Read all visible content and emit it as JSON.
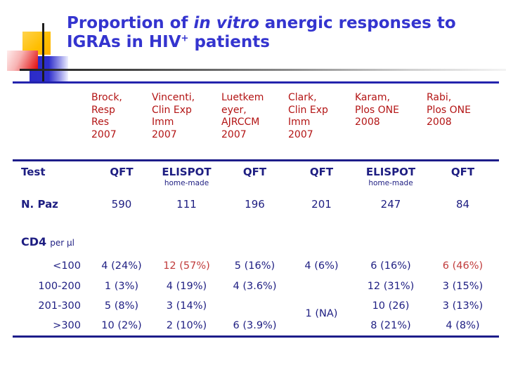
{
  "title": {
    "l1_a": "Proportion of ",
    "l1_italic": "in vitro",
    "l1_b": " anergic responses to",
    "l2_a": "IGRAs in HIV",
    "l2_sup": "+",
    "l2_b": " patients"
  },
  "colors": {
    "title_blue": "#3434cf",
    "header_red": "#b31414",
    "body_navy": "#1e1e82",
    "highlight_red": "#c13c3c",
    "deco_yellow": "#ffbe00",
    "deco_blue": "#2b2bc8",
    "deco_red": "#e31212"
  },
  "table": {
    "columns": [
      {
        "header": "Brock,\nResp\nRes\n2007"
      },
      {
        "header": "Vincenti,\nClin Exp\nImm\n2007"
      },
      {
        "header": "Luetkem\neyer,\nAJRCCM\n2007"
      },
      {
        "header": "Clark,\nClin Exp\nImm\n2007"
      },
      {
        "header": "Karam,\nPlos ONE\n2008"
      },
      {
        "header": "Rabi,\nPlos ONE\n2008"
      }
    ],
    "test_row": {
      "label": "Test",
      "values": [
        {
          "main": "QFT"
        },
        {
          "main": "ELISPOT",
          "sub": "home-made"
        },
        {
          "main": "QFT"
        },
        {
          "main": "QFT"
        },
        {
          "main": "ELISPOT",
          "sub": "home-made"
        },
        {
          "main": "QFT"
        }
      ]
    },
    "n_row": {
      "label": "N. Paz",
      "values": [
        "590",
        "111",
        "196",
        "201",
        "247",
        "84"
      ]
    },
    "cd4_heading": {
      "label": "CD4",
      "unit": "per μl"
    },
    "cd4_rows": [
      {
        "label": "<100",
        "values": [
          "4 (24%)",
          "12 (57%)",
          "5 (16%)",
          "4 (6%)",
          "6 (16%)",
          "6 (46%)"
        ]
      },
      {
        "label": "100-200",
        "values": [
          "1 (3%)",
          "4 (19%)",
          "4 (3.6%)",
          "",
          "12 (31%)",
          "3 (15%)"
        ]
      },
      {
        "label": "201-300",
        "values": [
          "5 (8%)",
          "3 (14%)",
          "",
          "1 (NA)",
          "10 (26)",
          "3 (13%)"
        ]
      },
      {
        "label": ">300",
        "values": [
          "10 (2%)",
          "2 (10%)",
          "6 (3.9%)",
          "",
          "8 (21%)",
          "4 (8%)"
        ]
      }
    ]
  }
}
